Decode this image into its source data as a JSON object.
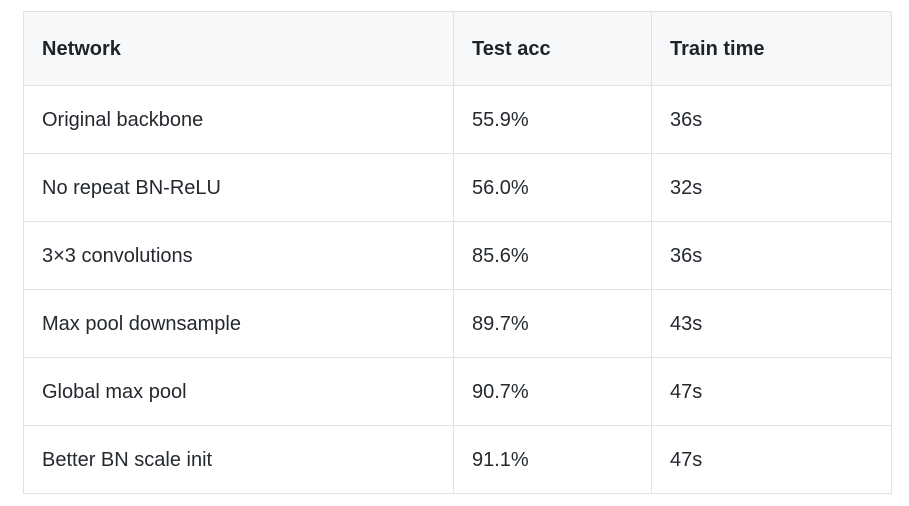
{
  "table": {
    "headers": [
      "Network",
      "Test acc",
      "Train time"
    ],
    "rows": [
      [
        "Original backbone",
        "55.9%",
        "36s"
      ],
      [
        "No repeat BN-ReLU",
        "56.0%",
        "32s"
      ],
      [
        "3×3 convolutions",
        "85.6%",
        "36s"
      ],
      [
        "Max pool downsample",
        "89.7%",
        "43s"
      ],
      [
        "Global max pool",
        "90.7%",
        "47s"
      ],
      [
        "Better BN scale init",
        "91.1%",
        "47s"
      ]
    ]
  }
}
